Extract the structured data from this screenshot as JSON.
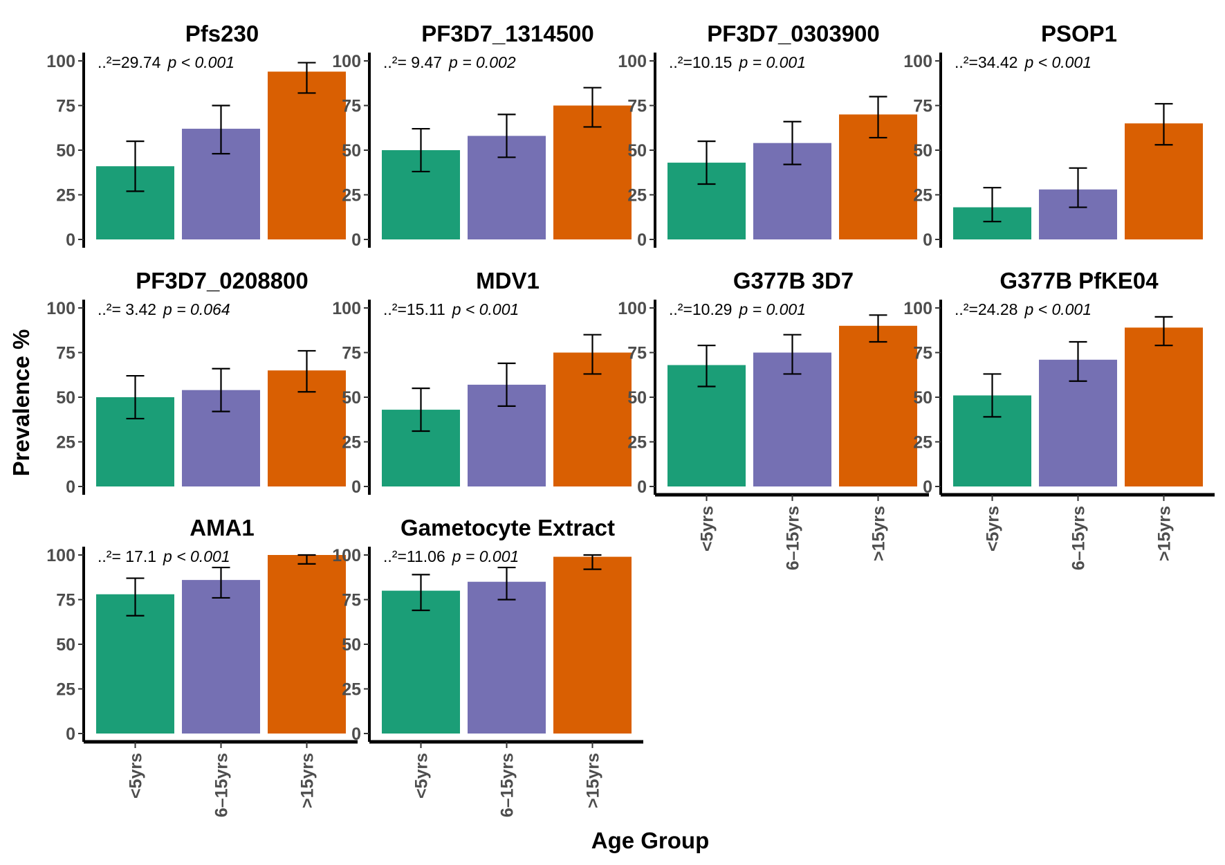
{
  "chart_data": {
    "type": "bar",
    "ylabel": "Prevalence %",
    "xlabel": "Age Group",
    "ylim": [
      0,
      100
    ],
    "yticks": [
      "0",
      "25",
      "50",
      "75",
      "100"
    ],
    "categories": [
      "<5yrs",
      "6–15yrs",
      ">15yrs"
    ],
    "colors": [
      "#1b9e77",
      "#7570b3",
      "#d95f02"
    ],
    "error_bars": "95% CI",
    "panels": [
      {
        "title": "Pfs230",
        "chi2": "=29.74",
        "p_op": "p < 0.001",
        "values": [
          41,
          62,
          94
        ],
        "lower": [
          27,
          48,
          82
        ],
        "upper": [
          55,
          75,
          99
        ]
      },
      {
        "title": "PF3D7_1314500",
        "chi2": "= 9.47",
        "p_op": "p = 0.002",
        "values": [
          50,
          58,
          75
        ],
        "lower": [
          38,
          46,
          63
        ],
        "upper": [
          62,
          70,
          85
        ]
      },
      {
        "title": "PF3D7_0303900",
        "chi2": "=10.15",
        "p_op": "p = 0.001",
        "values": [
          43,
          54,
          70
        ],
        "lower": [
          31,
          42,
          57
        ],
        "upper": [
          55,
          66,
          80
        ]
      },
      {
        "title": "PSOP1",
        "chi2": "=34.42",
        "p_op": "p < 0.001",
        "values": [
          18,
          28,
          65
        ],
        "lower": [
          10,
          18,
          53
        ],
        "upper": [
          29,
          40,
          76
        ]
      },
      {
        "title": "PF3D7_0208800",
        "chi2": "= 3.42",
        "p_op": "p = 0.064",
        "values": [
          50,
          54,
          65
        ],
        "lower": [
          38,
          42,
          53
        ],
        "upper": [
          62,
          66,
          76
        ]
      },
      {
        "title": "MDV1",
        "chi2": "=15.11",
        "p_op": "p < 0.001",
        "values": [
          43,
          57,
          75
        ],
        "lower": [
          31,
          45,
          63
        ],
        "upper": [
          55,
          69,
          85
        ]
      },
      {
        "title": "G377B 3D7",
        "chi2": "=10.29",
        "p_op": "p = 0.001",
        "values": [
          68,
          75,
          90
        ],
        "lower": [
          56,
          63,
          81
        ],
        "upper": [
          79,
          85,
          96
        ]
      },
      {
        "title": "G377B PfKE04",
        "chi2": "=24.28",
        "p_op": "p < 0.001",
        "values": [
          51,
          71,
          89
        ],
        "lower": [
          39,
          59,
          79
        ],
        "upper": [
          63,
          81,
          95
        ]
      },
      {
        "title": "AMA1",
        "chi2": "= 17.1",
        "p_op": "p < 0.001",
        "values": [
          78,
          86,
          100
        ],
        "lower": [
          66,
          76,
          95
        ],
        "upper": [
          87,
          93,
          100
        ]
      },
      {
        "title": "Gametocyte Extract",
        "chi2": "=11.06",
        "p_op": "p = 0.001",
        "values": [
          80,
          85,
          99
        ],
        "lower": [
          69,
          75,
          92
        ],
        "upper": [
          89,
          93,
          100
        ]
      }
    ],
    "chi2_symbol": "..²"
  }
}
